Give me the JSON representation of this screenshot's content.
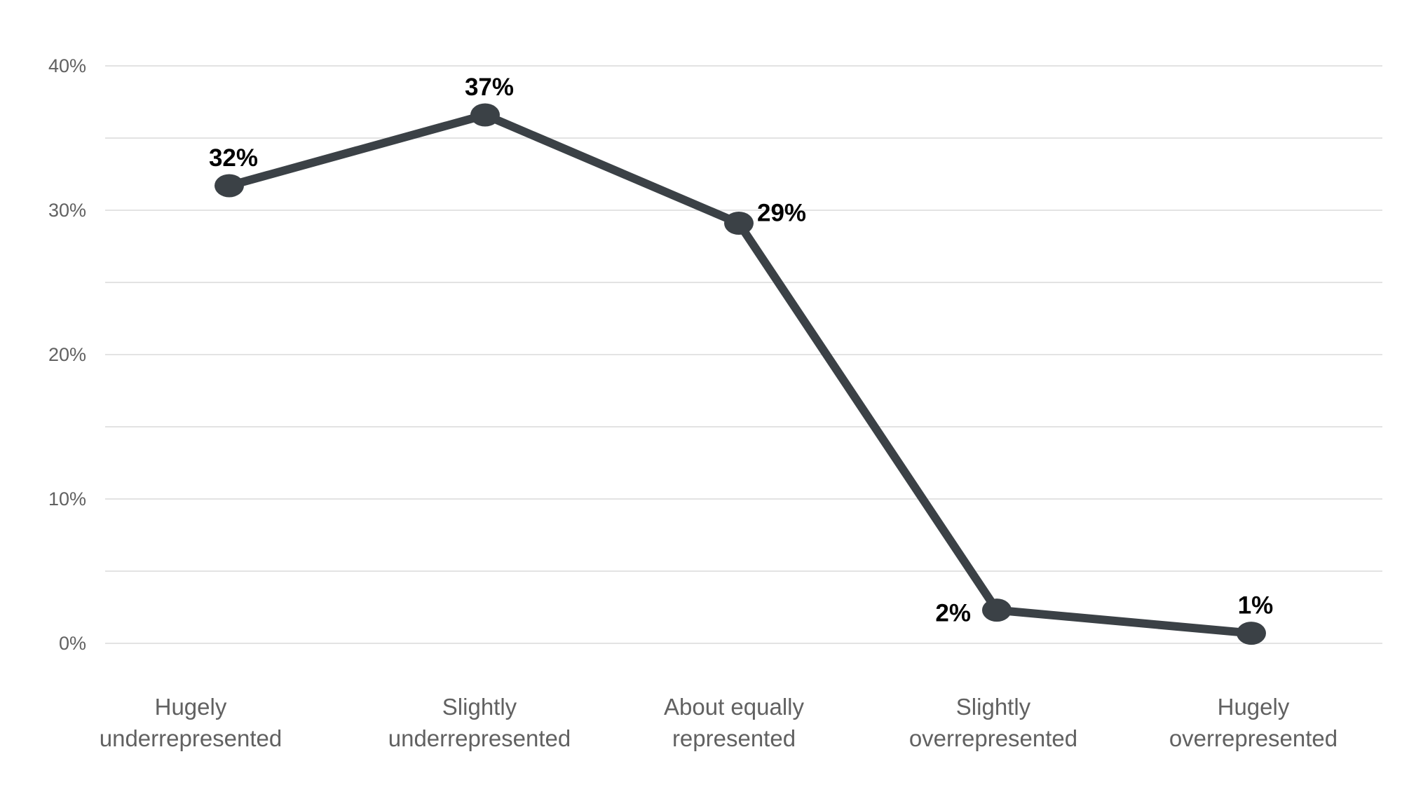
{
  "chart_data": {
    "type": "line",
    "categories": [
      "Hugely underrepresented",
      "Slightly underrepresented",
      "About equally represented",
      "Slightly overrepresented",
      "Hugely overrepresented"
    ],
    "category_lines": [
      [
        "Hugely",
        "underrepresented"
      ],
      [
        "Slightly",
        "underrepresented"
      ],
      [
        "About equally",
        "represented"
      ],
      [
        "Slightly",
        "overrepresented"
      ],
      [
        "Hugely",
        "overrepresented"
      ]
    ],
    "values": [
      32,
      37,
      29,
      2,
      1
    ],
    "value_labels": [
      "32%",
      "37%",
      "29%",
      "2%",
      "1%"
    ],
    "plotted_values_estimated": [
      31.7,
      36.6,
      29.1,
      2.3,
      0.7
    ],
    "label_placement": [
      "above",
      "above",
      "right",
      "left",
      "above"
    ],
    "ylim": [
      0,
      40
    ],
    "yticks": [
      0,
      10,
      20,
      30,
      40
    ],
    "ytick_labels": [
      "0%",
      "10%",
      "20%",
      "30%",
      "40%"
    ],
    "grid_step_pct": 5,
    "grid": "on",
    "legend": "none",
    "series_count": 1,
    "colors": {
      "line": "#3b4146",
      "point": "#3b4146",
      "grid": "#e3e3e3",
      "axis_text": "#616161",
      "data_label": "#000000",
      "background": "#ffffff"
    }
  }
}
